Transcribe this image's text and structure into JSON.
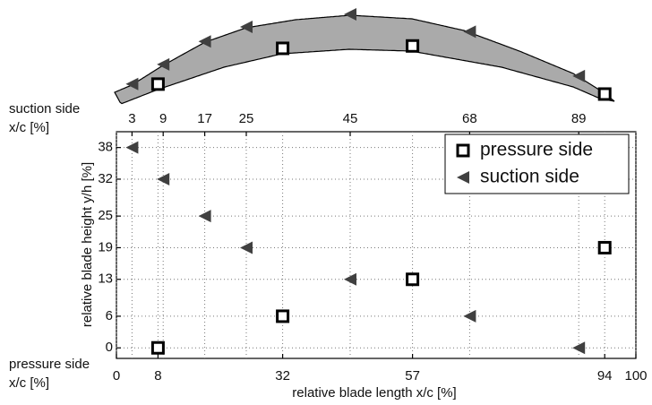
{
  "chart_data": {
    "type": "scatter",
    "xlabel": "relative blade length x/c [%]",
    "ylabel": "relative blade height y/h [%]",
    "x2label_lines": [
      "suction side",
      "x/c [%]"
    ],
    "xlabel_lines": [
      "pressure side",
      "x/c [%]"
    ],
    "xlim": [
      0,
      100
    ],
    "ylim": [
      -2,
      41
    ],
    "xticks": [
      0,
      8,
      32,
      57,
      94,
      100
    ],
    "x2ticks": [
      3,
      9,
      17,
      25,
      45,
      68,
      89
    ],
    "yticks": [
      0,
      6,
      13,
      19,
      25,
      32,
      38
    ],
    "grid": true,
    "legend": "upper right",
    "series": [
      {
        "name": "pressure side",
        "color": "#000000",
        "marker": "square",
        "x": [
          8,
          32,
          57,
          94
        ],
        "values": [
          0,
          6,
          13,
          19
        ]
      },
      {
        "name": "suction side",
        "color": "#404040",
        "marker": "triangle-left",
        "x": [
          3,
          9,
          17,
          25,
          45,
          68,
          89
        ],
        "values": [
          38,
          32,
          25,
          19,
          13,
          6,
          0
        ]
      }
    ]
  }
}
